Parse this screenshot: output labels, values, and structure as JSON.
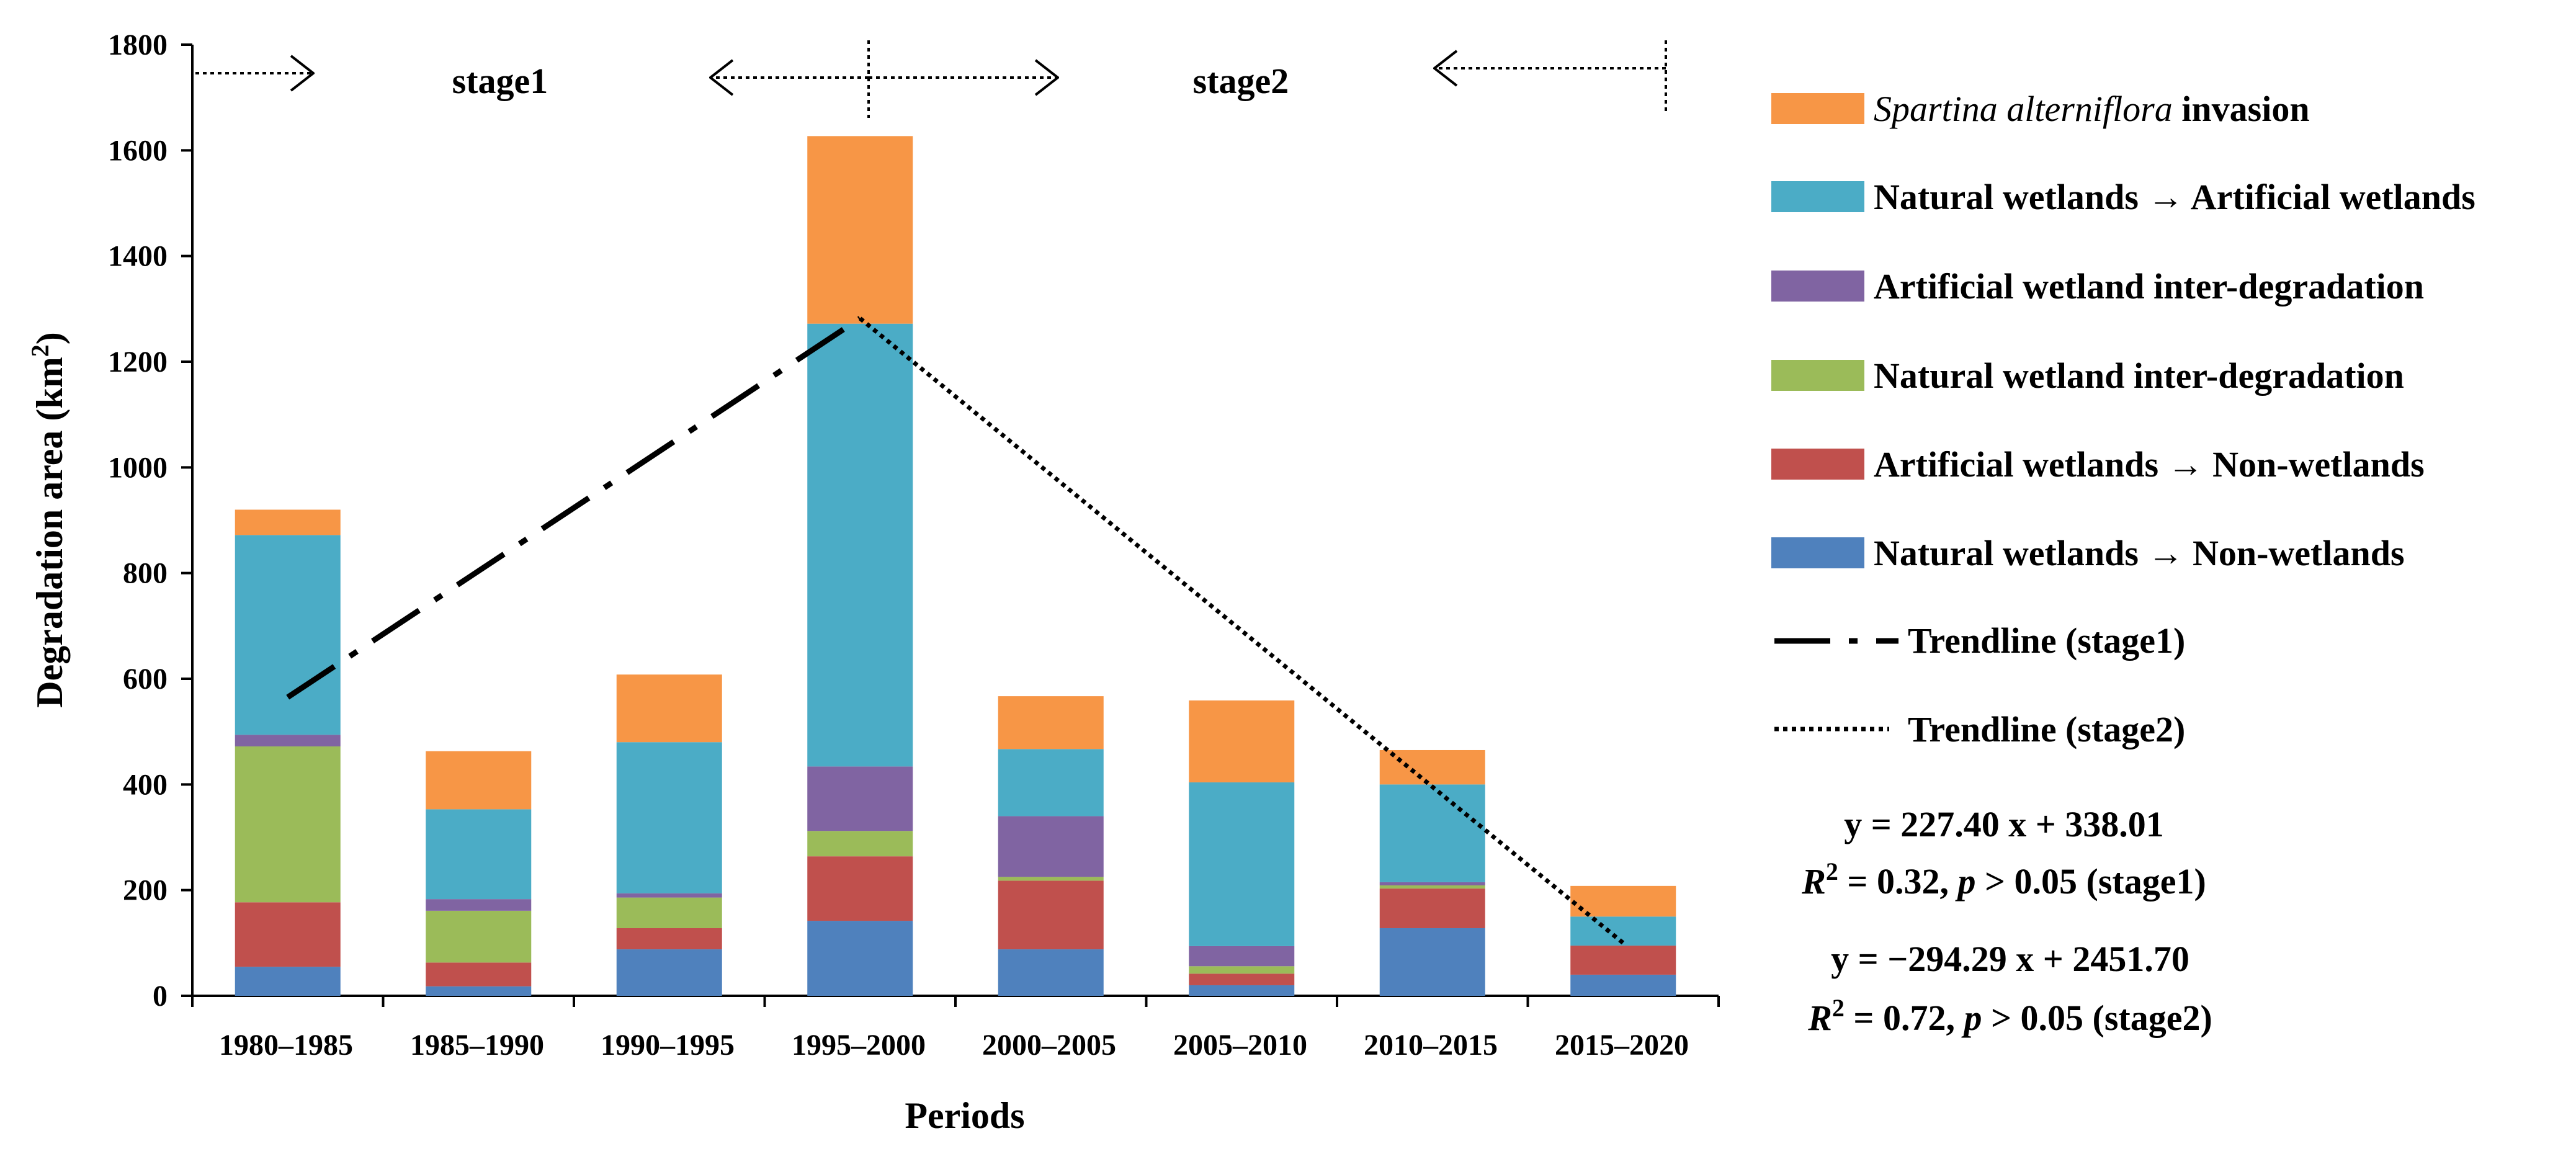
{
  "chart_data": {
    "type": "bar",
    "stacked": true,
    "categories": [
      "1980–1985",
      "1985–1990",
      "1990–1995",
      "1995–2000",
      "2000–2005",
      "2005–2010",
      "2010–2015",
      "2015–2020"
    ],
    "series": [
      {
        "name": "Natural wetlands → Non-wetlands",
        "color": "#4f81bd",
        "values": [
          55,
          18,
          88,
          142,
          88,
          20,
          128,
          40
        ]
      },
      {
        "name": "Artificial wetlands → Non-wetlands",
        "color": "#c0504d",
        "values": [
          122,
          45,
          40,
          122,
          130,
          22,
          75,
          55
        ]
      },
      {
        "name": "Natural wetland inter-degradation",
        "color": "#9bbb59",
        "values": [
          295,
          98,
          58,
          48,
          7,
          14,
          6,
          0
        ]
      },
      {
        "name": "Artificial wetland inter-degradation",
        "color": "#8064a2",
        "values": [
          22,
          22,
          8,
          122,
          115,
          38,
          6,
          0
        ]
      },
      {
        "name": "Natural wetlands → Artificial wetlands",
        "color": "#4bacc6",
        "values": [
          378,
          170,
          286,
          838,
          127,
          310,
          185,
          55
        ]
      },
      {
        "name": "Spartina alterniflora invasion",
        "color": "#f79646",
        "values": [
          48,
          110,
          128,
          355,
          100,
          155,
          65,
          58
        ]
      }
    ],
    "trendlines": [
      {
        "name": "Trendline (stage1)",
        "style": "dash-dot",
        "from": {
          "x": "1980–1985",
          "y": 565
        },
        "to": {
          "x": "1995–2000",
          "y": 1282
        }
      },
      {
        "name": "Trendline (stage2)",
        "style": "dotted",
        "from": {
          "x": "1995–2000",
          "y": 1282
        },
        "to": {
          "x": "2015–2020",
          "y": 100
        }
      }
    ],
    "xlabel": "Periods",
    "ylabel": "Degradation area (km²)",
    "ylim": [
      0,
      1800
    ],
    "yticks": [
      0,
      200,
      400,
      600,
      800,
      1000,
      1200,
      1400,
      1600,
      1800
    ],
    "stage_labels": [
      "stage1",
      "stage2"
    ],
    "legend_position": "right"
  },
  "legend": {
    "spartina_italic": "Spartina alterniflora",
    "spartina_rest": " invasion",
    "nat_to_art": "Natural wetlands → Artificial wetlands",
    "art_inter": "Artificial wetland inter-degradation",
    "nat_inter": "Natural wetland inter-degradation",
    "art_to_non": "Artificial wetlands → Non-wetlands",
    "nat_to_non": "Natural wetlands → Non-wetlands",
    "trend1": "Trendline (stage1)",
    "trend2": "Trendline (stage2)"
  },
  "equations": {
    "stage1_eq": "y = 227.40 x + 338.01",
    "stage1_stat_tail": " (stage1)",
    "stage2_eq": "y = −294.29 x + 2451.70",
    "stage2_stat_tail": " (stage2)",
    "r_letter": "R",
    "r_exp": "2",
    "r_mid1": " = 0.32, ",
    "r_mid2": " = 0.72, ",
    "p_letter": "p",
    "p_rest": " > 0.05"
  },
  "axis": {
    "ylabel_main": "Degradation area (km",
    "ylabel_sup": "2",
    "ylabel_close": ")"
  }
}
